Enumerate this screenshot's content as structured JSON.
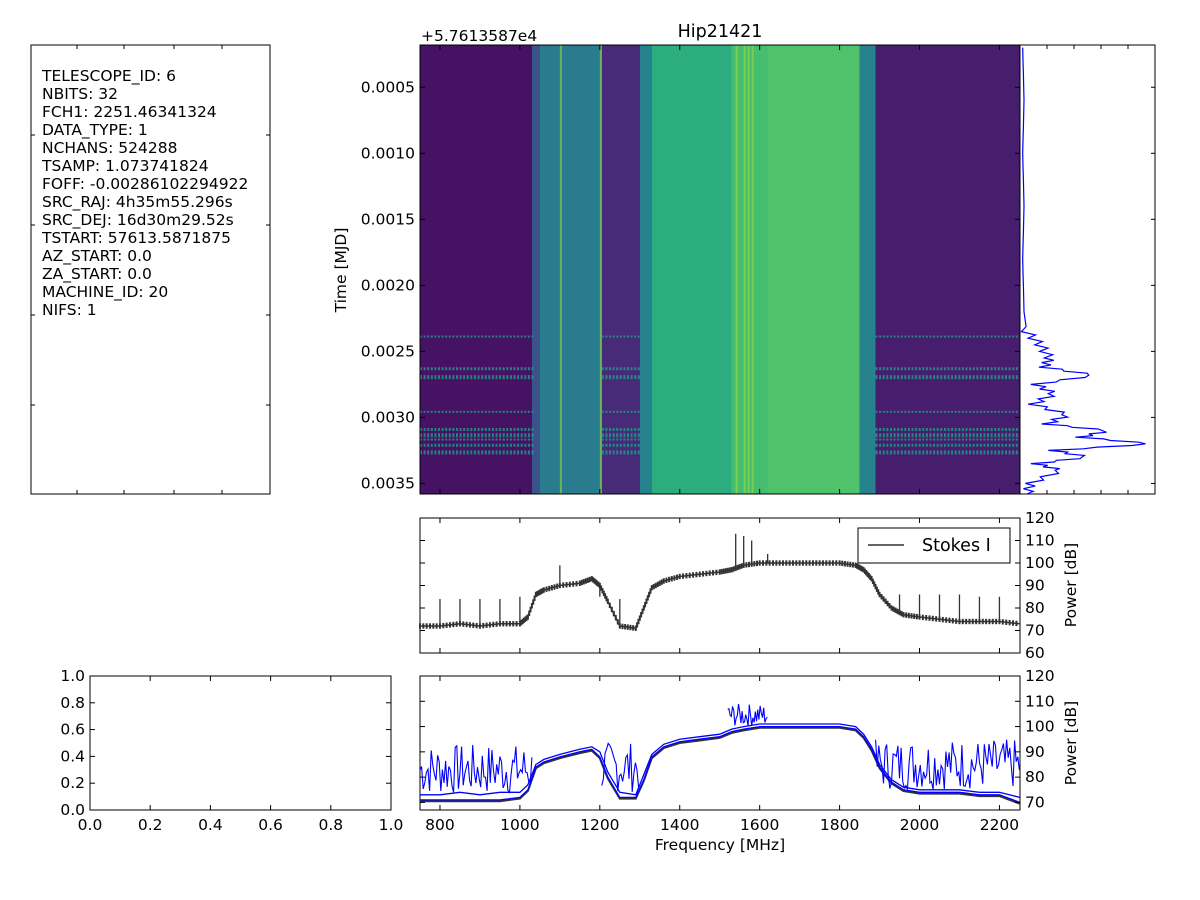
{
  "header_panel": {
    "lines": [
      {
        "key": "TELESCOPE_ID",
        "value": "6"
      },
      {
        "key": "NBITS",
        "value": "32"
      },
      {
        "key": "FCH1",
        "value": "2251.46341324"
      },
      {
        "key": "DATA_TYPE",
        "value": "1"
      },
      {
        "key": "NCHANS",
        "value": "524288"
      },
      {
        "key": "TSAMP",
        "value": "1.073741824"
      },
      {
        "key": "FOFF",
        "value": "-0.00286102294922"
      },
      {
        "key": "SRC_RAJ",
        "value": "4h35m55.296s"
      },
      {
        "key": "SRC_DEJ",
        "value": "16d30m29.52s"
      },
      {
        "key": "TSTART",
        "value": "57613.5871875"
      },
      {
        "key": "AZ_START",
        "value": "0.0"
      },
      {
        "key": "ZA_START",
        "value": "0.0"
      },
      {
        "key": "MACHINE_ID",
        "value": "20"
      },
      {
        "key": "NIFS",
        "value": "1"
      }
    ]
  },
  "chart_data": [
    {
      "id": "waterfall",
      "type": "heatmap",
      "title": "Hip21421",
      "offset_label": "+5.7613587e4",
      "ylabel": "Time [MJD]",
      "y_ticks": [
        "0.0005",
        "0.0010",
        "0.0015",
        "0.0020",
        "0.0025",
        "0.0030",
        "0.0035"
      ],
      "y_tick_values": [
        0.0005,
        0.001,
        0.0015,
        0.002,
        0.0025,
        0.003,
        0.0035
      ],
      "ylim": [
        0.00018,
        0.00358
      ],
      "xlim": [
        750,
        2251.46
      ],
      "colormap": "viridis",
      "bands": [
        {
          "from": 750,
          "to": 1030,
          "level": 0.05
        },
        {
          "from": 1030,
          "to": 1050,
          "level": 0.25
        },
        {
          "from": 1050,
          "to": 1205,
          "level": 0.42
        },
        {
          "from": 1205,
          "to": 1300,
          "level": 0.12
        },
        {
          "from": 1300,
          "to": 1330,
          "level": 0.45
        },
        {
          "from": 1330,
          "to": 1530,
          "level": 0.62
        },
        {
          "from": 1530,
          "to": 1620,
          "level": 0.7
        },
        {
          "from": 1620,
          "to": 1850,
          "level": 0.72
        },
        {
          "from": 1850,
          "to": 1890,
          "level": 0.45
        },
        {
          "from": 1890,
          "to": 2251.46,
          "level": 0.08
        }
      ]
    },
    {
      "id": "time_series",
      "type": "line",
      "y": [
        0.0002,
        0.0006,
        0.001,
        0.0014,
        0.0018,
        0.0022,
        0.00235,
        0.00245,
        0.00255,
        0.00262,
        0.00268,
        0.00275,
        0.00282,
        0.0029,
        0.00298,
        0.00305,
        0.0031,
        0.00315,
        0.0032,
        0.00325,
        0.0033,
        0.00335,
        0.0034,
        0.0035,
        0.00358
      ],
      "x": [
        0.02,
        0.03,
        0.02,
        0.03,
        0.02,
        0.03,
        0.05,
        0.15,
        0.22,
        0.18,
        0.55,
        0.12,
        0.25,
        0.1,
        0.35,
        0.2,
        0.65,
        0.45,
        0.97,
        0.25,
        0.5,
        0.12,
        0.3,
        0.08,
        0.05
      ],
      "color": "#0000ff"
    },
    {
      "id": "spectrum",
      "type": "line",
      "xlim": [
        750,
        2251.46
      ],
      "ylim": [
        60,
        120
      ],
      "ylabel": "Power [dB]",
      "y_ticks": [
        60,
        70,
        80,
        90,
        100,
        110,
        120
      ],
      "legend": "Stokes I",
      "legend_position": "top-right",
      "color": "#333333",
      "series": [
        {
          "name": "Stokes I",
          "x": [
            750,
            800,
            850,
            900,
            950,
            1000,
            1020,
            1040,
            1060,
            1100,
            1150,
            1180,
            1200,
            1220,
            1250,
            1290,
            1310,
            1330,
            1360,
            1400,
            1450,
            1500,
            1530,
            1560,
            1600,
            1650,
            1700,
            1750,
            1800,
            1840,
            1860,
            1880,
            1900,
            1930,
            1960,
            2000,
            2050,
            2100,
            2150,
            2200,
            2251
          ],
          "y": [
            72,
            72,
            73,
            72,
            73,
            73,
            76,
            86,
            88,
            90,
            91,
            93,
            90,
            83,
            72,
            71,
            80,
            89,
            92,
            94,
            95,
            96,
            97,
            99,
            100,
            100,
            100,
            100,
            100,
            99,
            97,
            93,
            86,
            80,
            77,
            76,
            75,
            74,
            74,
            74,
            73
          ]
        }
      ],
      "peaks": [
        {
          "x": 800,
          "y": 84
        },
        {
          "x": 850,
          "y": 84
        },
        {
          "x": 900,
          "y": 84
        },
        {
          "x": 950,
          "y": 84
        },
        {
          "x": 1000,
          "y": 85
        },
        {
          "x": 1100,
          "y": 99
        },
        {
          "x": 1200,
          "y": 85
        },
        {
          "x": 1250,
          "y": 84
        },
        {
          "x": 1540,
          "y": 113
        },
        {
          "x": 1560,
          "y": 112
        },
        {
          "x": 1580,
          "y": 110
        },
        {
          "x": 1620,
          "y": 104
        },
        {
          "x": 1950,
          "y": 86
        },
        {
          "x": 2000,
          "y": 86
        },
        {
          "x": 2050,
          "y": 86
        },
        {
          "x": 2100,
          "y": 86
        },
        {
          "x": 2150,
          "y": 85
        },
        {
          "x": 2200,
          "y": 85
        }
      ]
    },
    {
      "id": "kurtosis",
      "type": "line",
      "xlabel": "Frequency [MHz]",
      "ylabel": "Power [dB]",
      "xlim": [
        750,
        2251.46
      ],
      "ylim": [
        67,
        120
      ],
      "x_ticks": [
        800,
        1000,
        1200,
        1400,
        1600,
        1800,
        2000,
        2200
      ],
      "y_ticks": [
        70,
        80,
        90,
        100,
        110,
        120
      ],
      "series": [
        {
          "color": "#0000ff",
          "x": [
            750,
            800,
            850,
            900,
            950,
            1000,
            1020,
            1040,
            1060,
            1100,
            1150,
            1180,
            1200,
            1220,
            1250,
            1290,
            1310,
            1330,
            1360,
            1400,
            1450,
            1500,
            1530,
            1560,
            1600,
            1650,
            1700,
            1750,
            1800,
            1840,
            1860,
            1880,
            1900,
            1930,
            1960,
            2000,
            2050,
            2100,
            2150,
            2200,
            2251
          ],
          "y": [
            73,
            73,
            74,
            73,
            74,
            74,
            77,
            85,
            87,
            89,
            91,
            92,
            90,
            82,
            74,
            73,
            81,
            89,
            93,
            95,
            96,
            97,
            99,
            100,
            101,
            101,
            101,
            101,
            101,
            100,
            97,
            92,
            85,
            79,
            76,
            75,
            75,
            75,
            74,
            74,
            72
          ]
        },
        {
          "color": "#0000ff",
          "x": [
            750,
            800,
            850,
            900,
            950,
            1000,
            1020,
            1040,
            1060,
            1100,
            1150,
            1180,
            1200,
            1220,
            1250,
            1290,
            1310,
            1330,
            1360,
            1400,
            1450,
            1500,
            1530,
            1560,
            1600,
            1650,
            1700,
            1750,
            1800,
            1840,
            1860,
            1880,
            1900,
            1930,
            1960,
            2000,
            2050,
            2100,
            2150,
            2200,
            2251
          ],
          "y": [
            71,
            71,
            71,
            71,
            71,
            72,
            75,
            84,
            86,
            88,
            90,
            91,
            88,
            80,
            72,
            72,
            79,
            88,
            92,
            94,
            95,
            96,
            98,
            99,
            100,
            100,
            100,
            100,
            100,
            99,
            96,
            91,
            84,
            78,
            75,
            74,
            74,
            74,
            73,
            73,
            70
          ]
        }
      ]
    },
    {
      "id": "empty_axes",
      "type": "line",
      "xlim": [
        0,
        1
      ],
      "ylim": [
        0,
        1
      ],
      "x_ticks": [
        "0.0",
        "0.2",
        "0.4",
        "0.6",
        "0.8",
        "1.0"
      ],
      "y_ticks": [
        "0.0",
        "0.2",
        "0.4",
        "0.6",
        "0.8",
        "1.0"
      ]
    }
  ]
}
